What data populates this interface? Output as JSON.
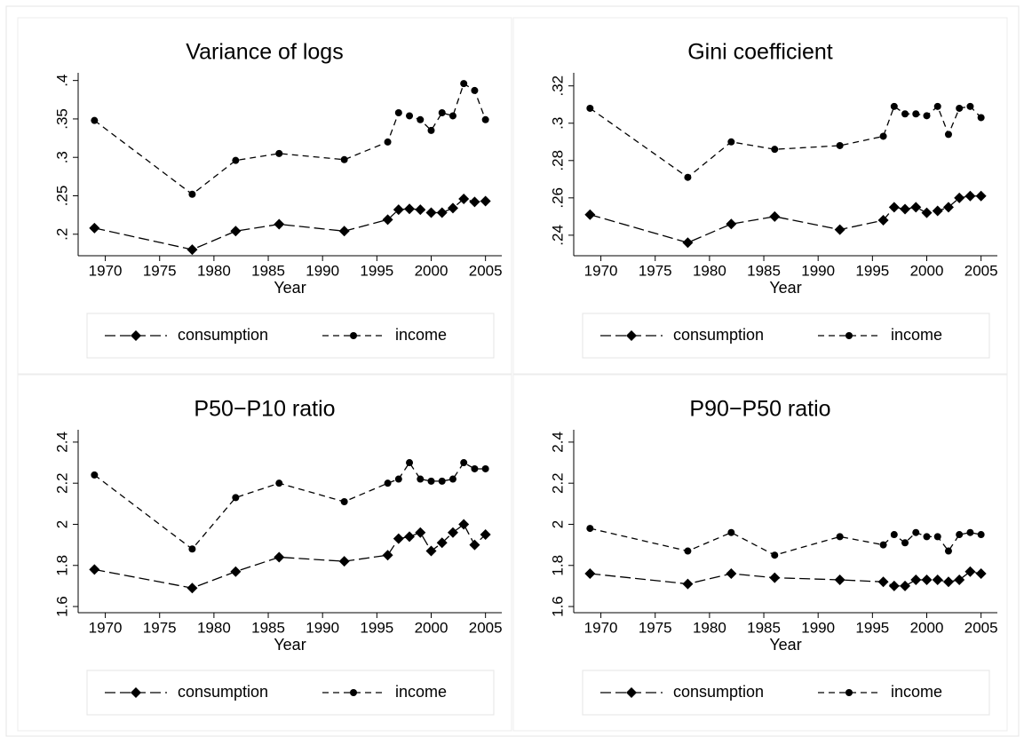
{
  "chart_data": [
    {
      "type": "line",
      "title": "Variance of logs",
      "x_label": "Year",
      "x": [
        1969,
        1978,
        1982,
        1986,
        1992,
        1996,
        1997,
        1998,
        1999,
        2000,
        2001,
        2002,
        2003,
        2004,
        2005
      ],
      "xlim": [
        1967.5,
        2006.5
      ],
      "xticks": [
        1970,
        1975,
        1980,
        1985,
        1990,
        1995,
        2000,
        2005
      ],
      "ylim": [
        0.172,
        0.41
      ],
      "yticks": [
        {
          "value": 0.2,
          "label": ".2"
        },
        {
          "value": 0.25,
          "label": ".25"
        },
        {
          "value": 0.3,
          "label": ".3"
        },
        {
          "value": 0.35,
          "label": ".35"
        },
        {
          "value": 0.4,
          "label": ".4"
        }
      ],
      "series": [
        {
          "name": "consumption",
          "color": "#000000",
          "marker": "diamond",
          "line_style": "longdash",
          "values": [
            0.208,
            0.18,
            0.204,
            0.213,
            0.204,
            0.219,
            0.232,
            0.233,
            0.232,
            0.228,
            0.228,
            0.234,
            0.246,
            0.242,
            0.243
          ]
        },
        {
          "name": "income",
          "color": "#000000",
          "marker": "circle",
          "line_style": "dash",
          "values": [
            0.348,
            0.252,
            0.296,
            0.305,
            0.297,
            0.32,
            0.358,
            0.354,
            0.349,
            0.335,
            0.358,
            0.354,
            0.396,
            0.387,
            0.349
          ]
        }
      ]
    },
    {
      "type": "line",
      "title": "Gini coefficient",
      "x_label": "Year",
      "x": [
        1969,
        1978,
        1982,
        1986,
        1992,
        1996,
        1997,
        1998,
        1999,
        2000,
        2001,
        2002,
        2003,
        2004,
        2005
      ],
      "xlim": [
        1967.5,
        2006.5
      ],
      "xticks": [
        1970,
        1975,
        1980,
        1985,
        1990,
        1995,
        2000,
        2005
      ],
      "ylim": [
        0.229,
        0.327
      ],
      "yticks": [
        {
          "value": 0.24,
          "label": ".24"
        },
        {
          "value": 0.26,
          "label": ".26"
        },
        {
          "value": 0.28,
          "label": ".28"
        },
        {
          "value": 0.3,
          "label": ".3"
        },
        {
          "value": 0.32,
          "label": ".32"
        }
      ],
      "series": [
        {
          "name": "consumption",
          "color": "#000000",
          "marker": "diamond",
          "line_style": "longdash",
          "values": [
            0.251,
            0.236,
            0.246,
            0.25,
            0.243,
            0.248,
            0.255,
            0.254,
            0.255,
            0.252,
            0.253,
            0.255,
            0.26,
            0.261,
            0.261
          ]
        },
        {
          "name": "income",
          "color": "#000000",
          "marker": "circle",
          "line_style": "dash",
          "values": [
            0.308,
            0.271,
            0.29,
            0.286,
            0.288,
            0.293,
            0.309,
            0.305,
            0.305,
            0.304,
            0.309,
            0.294,
            0.308,
            0.309,
            0.303
          ]
        }
      ]
    },
    {
      "type": "line",
      "title": "P50−P10 ratio",
      "x_label": "Year",
      "x": [
        1969,
        1978,
        1982,
        1986,
        1992,
        1996,
        1997,
        1998,
        1999,
        2000,
        2001,
        2002,
        2003,
        2004,
        2005
      ],
      "xlim": [
        1967.5,
        2006.5
      ],
      "xticks": [
        1970,
        1975,
        1980,
        1985,
        1990,
        1995,
        2000,
        2005
      ],
      "ylim": [
        1.57,
        2.46
      ],
      "yticks": [
        1.6,
        1.8,
        2,
        2.2,
        2.4
      ],
      "series": [
        {
          "name": "consumption",
          "color": "#000000",
          "marker": "diamond",
          "line_style": "longdash",
          "values": [
            1.78,
            1.69,
            1.77,
            1.84,
            1.82,
            1.85,
            1.93,
            1.94,
            1.96,
            1.87,
            1.91,
            1.96,
            2.0,
            1.9,
            1.95
          ]
        },
        {
          "name": "income",
          "color": "#000000",
          "marker": "circle",
          "line_style": "dash",
          "values": [
            2.24,
            1.88,
            2.13,
            2.2,
            2.11,
            2.2,
            2.22,
            2.3,
            2.22,
            2.21,
            2.21,
            2.22,
            2.3,
            2.27,
            2.27
          ]
        }
      ]
    },
    {
      "type": "line",
      "title": "P90−P50 ratio",
      "x_label": "Year",
      "x": [
        1969,
        1978,
        1982,
        1986,
        1992,
        1996,
        1997,
        1998,
        1999,
        2000,
        2001,
        2002,
        2003,
        2004,
        2005
      ],
      "xlim": [
        1967.5,
        2006.5
      ],
      "xticks": [
        1970,
        1975,
        1980,
        1985,
        1990,
        1995,
        2000,
        2005
      ],
      "ylim": [
        1.57,
        2.46
      ],
      "yticks": [
        1.6,
        1.8,
        2,
        2.2,
        2.4
      ],
      "series": [
        {
          "name": "consumption",
          "color": "#000000",
          "marker": "diamond",
          "line_style": "longdash",
          "values": [
            1.76,
            1.71,
            1.76,
            1.74,
            1.73,
            1.72,
            1.7,
            1.7,
            1.73,
            1.73,
            1.73,
            1.72,
            1.73,
            1.77,
            1.76
          ]
        },
        {
          "name": "income",
          "color": "#000000",
          "marker": "circle",
          "line_style": "dash",
          "values": [
            1.98,
            1.87,
            1.96,
            1.85,
            1.94,
            1.9,
            1.95,
            1.91,
            1.96,
            1.94,
            1.94,
            1.87,
            1.95,
            1.96,
            1.95
          ]
        }
      ]
    }
  ]
}
